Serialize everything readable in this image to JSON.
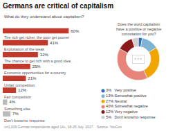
{
  "chart_data": [
    {
      "type": "bar",
      "title": "Germans are critical of capitalism",
      "subtitle": "What do they understand about capitalism?",
      "orientation": "horizontal",
      "categories": [
        "The rich get richer, the poor get poorer",
        "Exploitation of the weak",
        "The chance to get rich with a good idea",
        "Economic opportunities for a country",
        "Unfair competition",
        "Fair competition",
        "Something else",
        "Don't know/no response"
      ],
      "values": [
        60,
        41,
        32,
        25,
        21,
        12,
        4,
        7
      ],
      "value_labels": [
        "60%",
        "41%",
        "32%",
        "25%",
        "21%",
        "12%",
        "4%",
        "7%"
      ],
      "data_labels": true,
      "colors": [
        "#c0392b",
        "#c0392b",
        "#c0392b",
        "#c0392b",
        "#c0392b",
        "#c0392b",
        "#bbbbbb",
        "#bbbbbb"
      ],
      "xlim": [
        0,
        78
      ],
      "tick_labels": false,
      "grid": false,
      "annotations": [
        "n=1,009 German respondents aged 14+, 18-25 July, 2017.   Source: YouGov"
      ]
    },
    {
      "type": "pie",
      "title": "Does the word capitalism\nhave a positive or negative\nconnotation for you?",
      "categories": [
        "3%   Very positive",
        "13% Somewhat positive",
        "27% Neutral",
        "40% Somewhat negative",
        "12% Very negative",
        "5%   Don't know/no response"
      ],
      "values": [
        3,
        13,
        27,
        40,
        12,
        5
      ],
      "colors": [
        "#2e6db4",
        "#7fb3d3",
        "#f0a500",
        "#e8857a",
        "#8b1a1a",
        "#d0d0d0"
      ],
      "data_labels": false,
      "legend": "bottom",
      "annotations": [
        "* * *"
      ]
    }
  ]
}
